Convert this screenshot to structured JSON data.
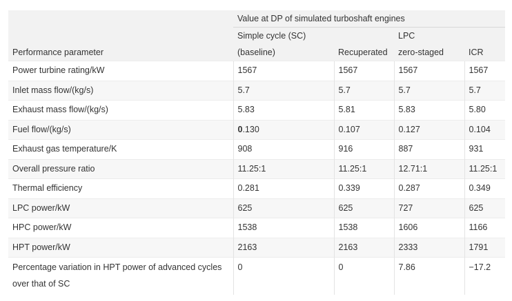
{
  "header": {
    "group_label": "Value at DP of simulated turboshaft engines",
    "param_label": "Performance parameter",
    "columns": [
      {
        "line1": "Simple cycle (SC)",
        "line2": "(baseline)"
      },
      {
        "line1": "",
        "line2": "Recuperated"
      },
      {
        "line1": "LPC",
        "line2": "zero-staged"
      },
      {
        "line1": "",
        "line2": "ICR"
      }
    ]
  },
  "rows": [
    {
      "param": "Power turbine rating/kW",
      "values": [
        "1567",
        "1567",
        "1567",
        "1567"
      ]
    },
    {
      "param": "Inlet mass flow/(kg/s)",
      "values": [
        "5.7",
        "5.7",
        "5.7",
        "5.7"
      ]
    },
    {
      "param": "Exhaust mass flow/(kg/s)",
      "values": [
        "5.83",
        "5.81",
        "5.83",
        "5.80"
      ]
    },
    {
      "param": "Fuel flow/(kg/s)",
      "values": [
        ".130",
        "0.107",
        "0.127",
        "0.104"
      ],
      "bold_prefix": "0"
    },
    {
      "param": "Exhaust gas temperature/K",
      "values": [
        "908",
        "916",
        "887",
        "931"
      ]
    },
    {
      "param": "Overall pressure ratio",
      "values": [
        "11.25:1",
        "11.25:1",
        "12.71:1",
        "11.25:1"
      ]
    },
    {
      "param": "Thermal efficiency",
      "values": [
        "0.281",
        "0.339",
        "0.287",
        "0.349"
      ]
    },
    {
      "param": "LPC power/kW",
      "values": [
        "625",
        "625",
        "727",
        "625"
      ]
    },
    {
      "param": "HPC power/kW",
      "values": [
        "1538",
        "1538",
        "1606",
        "1166"
      ]
    },
    {
      "param": "HPT power/kW",
      "values": [
        "2163",
        "2163",
        "2333",
        "1791"
      ]
    },
    {
      "param": "Percentage variation in HPT power of advanced cycles over that of SC",
      "values": [
        "0",
        "0",
        "7.86",
        "−17.2"
      ]
    }
  ]
}
